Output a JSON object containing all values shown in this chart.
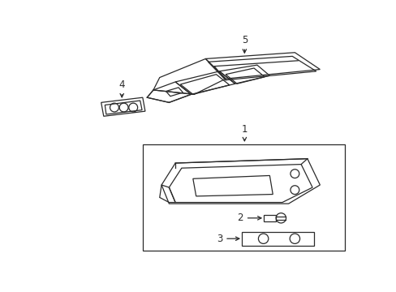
{
  "bg_color": "#ffffff",
  "line_color": "#2a2a2a",
  "lw": 0.9,
  "fig_w": 4.89,
  "fig_h": 3.6,
  "dpi": 100
}
